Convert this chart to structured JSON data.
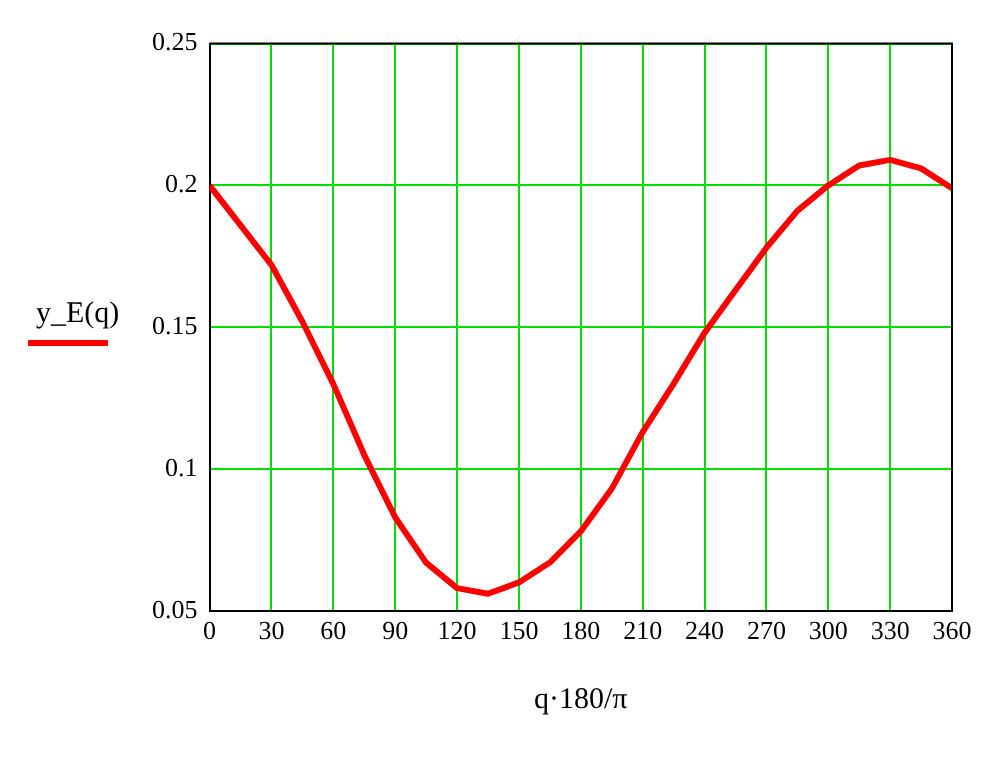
{
  "chart_data": {
    "type": "line",
    "xlabel": "q·180/π",
    "legend": "left",
    "grid": true,
    "marker": "none",
    "line_style": "solid",
    "xlim": [
      0,
      360
    ],
    "xticks": [
      0,
      30,
      60,
      90,
      120,
      150,
      180,
      210,
      240,
      270,
      300,
      330,
      360
    ],
    "ylim": [
      0.05,
      0.25
    ],
    "yticks": [
      0.05,
      0.1,
      0.15,
      0.2,
      0.25
    ],
    "x": [
      0,
      15,
      30,
      45,
      60,
      75,
      90,
      105,
      120,
      135,
      150,
      165,
      180,
      195,
      210,
      225,
      240,
      255,
      270,
      285,
      300,
      315,
      330,
      345,
      360
    ],
    "series": [
      {
        "name": "y_E(q)",
        "color": "#ff0000",
        "values": [
          0.2,
          0.186,
          0.172,
          0.152,
          0.13,
          0.105,
          0.083,
          0.067,
          0.058,
          0.056,
          0.06,
          0.067,
          0.078,
          0.093,
          0.113,
          0.13,
          0.148,
          0.163,
          0.178,
          0.191,
          0.2,
          0.207,
          0.209,
          0.206,
          0.199
        ]
      }
    ]
  }
}
